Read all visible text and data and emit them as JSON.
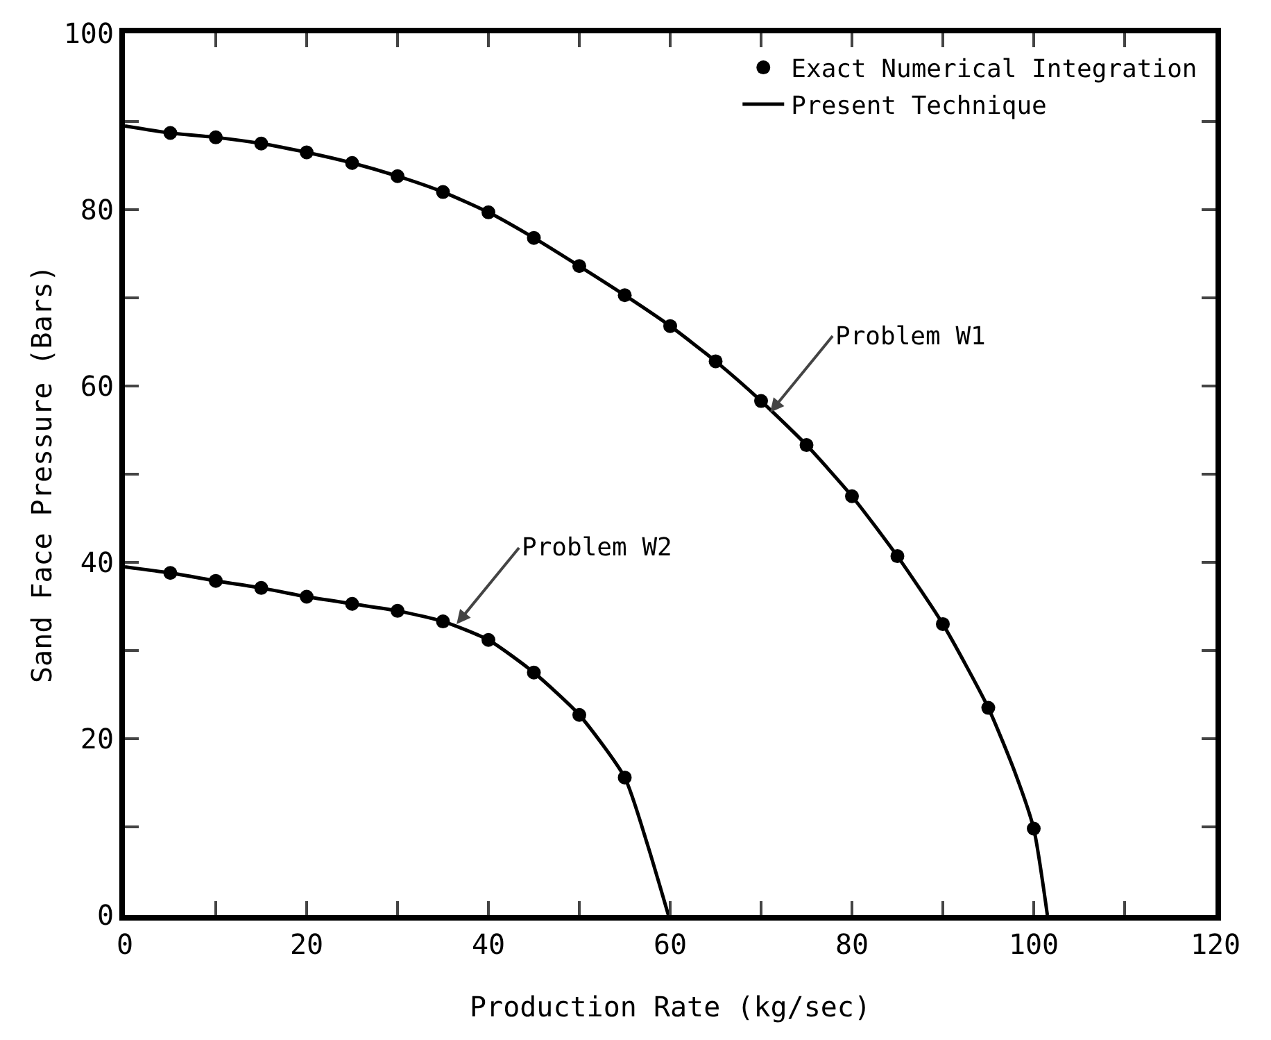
{
  "chart_data": {
    "type": "line",
    "xlabel": "Production Rate (kg/sec)",
    "ylabel": "Sand Face Pressure (Bars)",
    "xlim": [
      0,
      120
    ],
    "ylim": [
      0,
      100
    ],
    "xticks": [
      0,
      {
        "value": 10,
        "label": null
      },
      20,
      {
        "value": 30,
        "label": null
      },
      40,
      {
        "value": 50,
        "label": null
      },
      60,
      {
        "value": 70,
        "label": null
      },
      80,
      {
        "value": 90,
        "label": null
      },
      100,
      {
        "value": 110,
        "label": null
      },
      120
    ],
    "yticks": [
      0,
      {
        "value": 10,
        "label": null
      },
      20,
      {
        "value": 30,
        "label": null
      },
      40,
      {
        "value": 50,
        "label": null
      },
      60,
      {
        "value": 70,
        "label": null
      },
      80,
      {
        "value": 90,
        "label": null
      },
      100
    ],
    "grid": false,
    "legend": "top right",
    "line_style": "solid",
    "series": [
      {
        "name": "Exact Numerical Integration",
        "type": "scatter",
        "marker": "circle",
        "color": "#000000",
        "x": [
          5,
          10,
          15,
          20,
          25,
          30,
          35,
          40,
          45,
          50,
          55,
          60,
          65,
          70,
          75,
          80,
          85,
          90,
          95,
          100
        ],
        "values": [
          88.7,
          88.2,
          87.5,
          86.5,
          85.3,
          83.8,
          82,
          79.7,
          76.8,
          73.6,
          70.3,
          66.8,
          62.8,
          58.3,
          53.3,
          47.5,
          40.7,
          33,
          23.5,
          9.8
        ]
      },
      {
        "type": "scatter",
        "marker": "circle",
        "color": "#000000",
        "x": [
          5,
          10,
          15,
          20,
          25,
          30,
          35,
          40,
          45,
          50,
          55
        ],
        "values": [
          38.8,
          37.9,
          37.1,
          36.1,
          35.3,
          34.5,
          33.3,
          31.2,
          27.5,
          22.7,
          15.6
        ]
      },
      {
        "name": "Present Technique",
        "type": "line",
        "color": "#000000",
        "x": [
          0,
          5,
          10,
          15,
          20,
          25,
          30,
          35,
          40,
          45,
          50,
          55,
          60,
          65,
          70,
          75,
          80,
          85,
          90,
          95,
          98,
          100,
          101.5
        ],
        "values": [
          89.5,
          88.7,
          88.2,
          87.5,
          86.5,
          85.3,
          83.8,
          82,
          79.7,
          76.8,
          73.6,
          70.3,
          66.8,
          62.8,
          58.3,
          53.3,
          47.5,
          40.7,
          33,
          23.5,
          16,
          9.8,
          0
        ]
      },
      {
        "type": "line",
        "color": "#000000",
        "x": [
          0,
          5,
          10,
          15,
          20,
          25,
          30,
          35,
          40,
          45,
          50,
          55,
          57.5,
          59.8
        ],
        "values": [
          39.5,
          38.8,
          37.9,
          37.1,
          36.1,
          35.3,
          34.5,
          33.3,
          31.2,
          27.5,
          22.7,
          15.6,
          8,
          0
        ]
      }
    ],
    "annotations": [
      {
        "text": "Problem W1",
        "x": 71,
        "y": 57
      },
      {
        "text": "Problem W2",
        "x": 36.5,
        "y": 33
      }
    ]
  }
}
